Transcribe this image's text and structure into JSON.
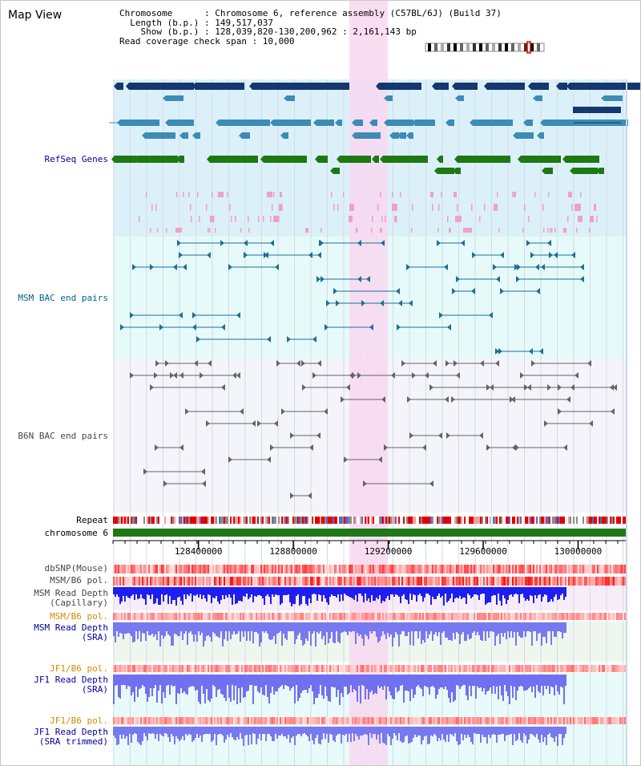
{
  "page": {
    "title": "Map View"
  },
  "info": {
    "line1": "Chromosome      : Chromosome 6, reference assembly (C57BL/6J) (Build 37)",
    "line2": "  Length (b.p.) : 149,517,037",
    "line3": "    Show (b.p.) : 128,039,820-130,200,962 : 2,161,143 bp",
    "line4": "Read coverage check span : 10,000"
  },
  "tracks": {
    "refseq": "RefSeq Genes",
    "msm_bac": "MSM BAC end pairs",
    "b6n_bac": "B6N BAC end pairs",
    "repeat": "Repeat",
    "chromosome": "chromosome 6",
    "dbsnp": "dbSNP(Mouse)",
    "msm_pol1": "MSM/B6 pol.",
    "msm_rd_cap_1": "MSM Read Depth",
    "msm_rd_cap_2": "(Capillary)",
    "msm_pol2": "MSM/B6 pol.",
    "msm_rd_sra_1": "MSM Read Depth",
    "msm_rd_sra_2": "(SRA)",
    "jf1_pol1": "JF1/B6 pol.",
    "jf1_rd_1": "JF1 Read Depth",
    "jf1_rd_2": "(SRA)",
    "jf1_pol2": "JF1/B6 pol.",
    "jf1_rdt_1": "JF1 Read Depth",
    "jf1_rdt_2": "(SRA trimmed)"
  },
  "axis": {
    "ticks": [
      "128400000",
      "128800000",
      "129200000",
      "129600000",
      "130000000"
    ],
    "tick_values": [
      128400000,
      128800000,
      129200000,
      129600000,
      130000000
    ],
    "range": [
      128039820,
      130200962
    ]
  },
  "colors": {
    "refseq_bg": "#dcf0fa",
    "msm_bg": "#e6fafa",
    "b6n_bg": "#f4f4fa",
    "highlight": "#f8d8f0",
    "gene_dark": "#14376e",
    "gene_mid": "#3c8cb4",
    "gene_green": "#1e7814",
    "pink": "#f0a0c8",
    "msm_pair": "#1e6e96",
    "b6n_pair": "#646464",
    "chrom_bar": "#1e7814",
    "label_blue": "#0000a0",
    "label_teal": "#006496",
    "label_orange": "#d28c00",
    "label_gray": "#464646"
  }
}
